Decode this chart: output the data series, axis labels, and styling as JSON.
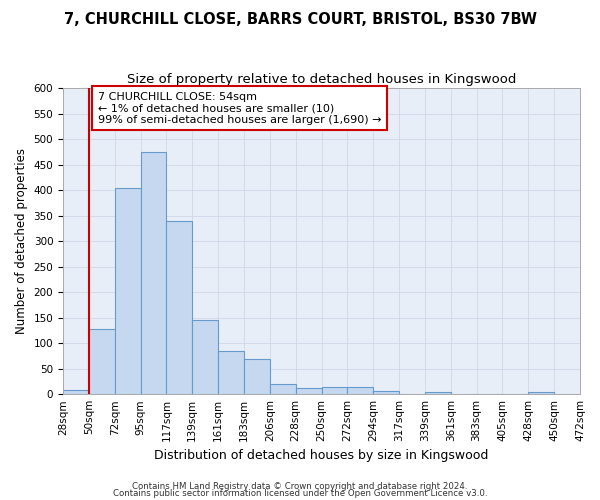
{
  "title": "7, CHURCHILL CLOSE, BARRS COURT, BRISTOL, BS30 7BW",
  "subtitle": "Size of property relative to detached houses in Kingswood",
  "xlabel": "Distribution of detached houses by size in Kingswood",
  "ylabel": "Number of detached properties",
  "bar_values": [
    9,
    127,
    404,
    475,
    340,
    145,
    85,
    68,
    20,
    12,
    15,
    15,
    7,
    0,
    5,
    0,
    0,
    0,
    5,
    0
  ],
  "bin_labels": [
    "28sqm",
    "50sqm",
    "72sqm",
    "95sqm",
    "117sqm",
    "139sqm",
    "161sqm",
    "183sqm",
    "206sqm",
    "228sqm",
    "250sqm",
    "272sqm",
    "294sqm",
    "317sqm",
    "339sqm",
    "361sqm",
    "383sqm",
    "405sqm",
    "428sqm",
    "450sqm",
    "472sqm"
  ],
  "bar_color": "#c5d8f0",
  "bar_edge_color": "#6699cc",
  "ylim": [
    0,
    600
  ],
  "yticks": [
    0,
    50,
    100,
    150,
    200,
    250,
    300,
    350,
    400,
    450,
    500,
    550,
    600
  ],
  "property_line_x": 1,
  "annotation_text": "7 CHURCHILL CLOSE: 54sqm\n← 1% of detached houses are smaller (10)\n99% of semi-detached houses are larger (1,690) →",
  "annotation_box_color": "#ffffff",
  "annotation_box_edge_color": "#cc0000",
  "vline_color": "#cc0000",
  "footnote1": "Contains HM Land Registry data © Crown copyright and database right 2024.",
  "footnote2": "Contains public sector information licensed under the Open Government Licence v3.0.",
  "title_fontsize": 10.5,
  "subtitle_fontsize": 9.5,
  "tick_fontsize": 7.5,
  "xlabel_fontsize": 9,
  "ylabel_fontsize": 8.5,
  "annotation_fontsize": 8,
  "grid_color": "#d0d8e8",
  "bg_color": "#e8eef8",
  "fig_color": "#ffffff"
}
